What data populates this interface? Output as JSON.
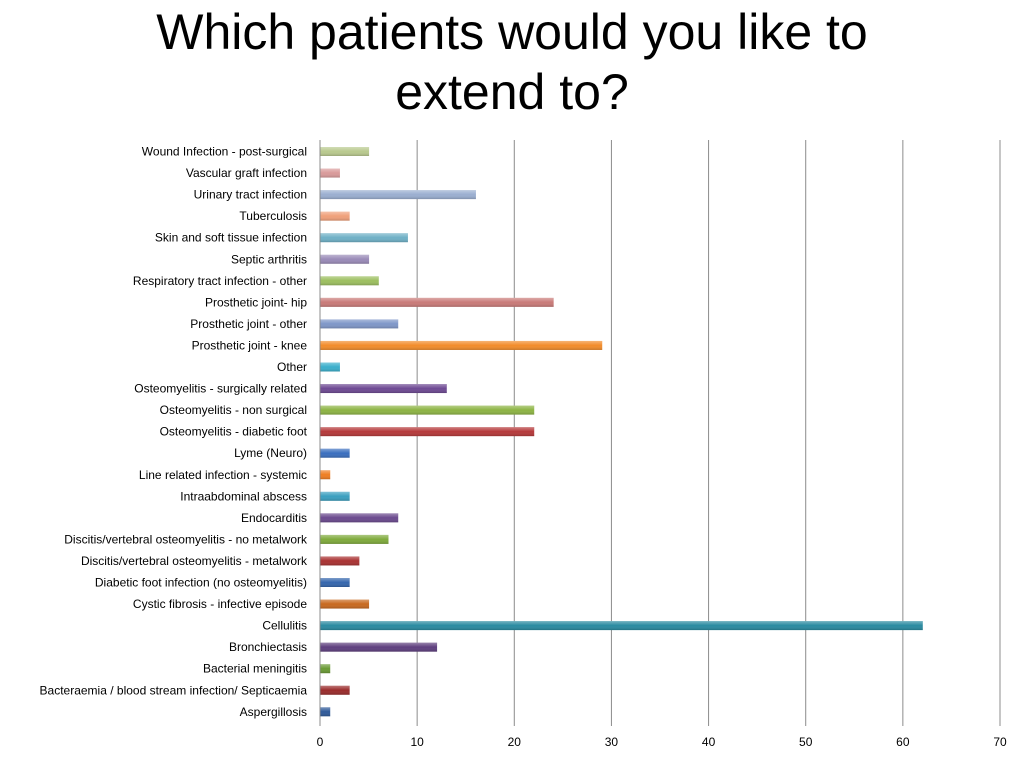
{
  "title_lines": [
    "Which patients would you like to",
    "extend to?"
  ],
  "chart_data": {
    "type": "bar",
    "orientation": "horizontal",
    "title": "Which patients would you like to extend to?",
    "xlabel": "",
    "ylabel": "",
    "xlim": [
      0,
      70
    ],
    "xticks": [
      0,
      10,
      20,
      30,
      40,
      50,
      60,
      70
    ],
    "grid": true,
    "legend": "none",
    "categories": [
      "Wound Infection - post-surgical",
      "Vascular graft infection",
      "Urinary tract infection",
      "Tuberculosis",
      "Skin and soft tissue infection",
      "Septic arthritis",
      "Respiratory tract infection - other",
      "Prosthetic joint- hip",
      "Prosthetic joint - other",
      "Prosthetic joint - knee",
      "Other",
      "Osteomyelitis - surgically related",
      "Osteomyelitis - non surgical",
      "Osteomyelitis - diabetic foot",
      "Lyme (Neuro)",
      "Line related infection - systemic",
      "Intraabdominal abscess",
      "Endocarditis",
      "Discitis/vertebral osteomyelitis - no metalwork",
      "Discitis/vertebral osteomyelitis - metalwork",
      "Diabetic foot infection (no osteomyelitis)",
      "Cystic fibrosis - infective episode",
      "Cellulitis",
      "Bronchiectasis",
      "Bacterial meningitis",
      "Bacteraemia / blood stream infection/ Septicaemia",
      "Aspergillosis"
    ],
    "values": [
      5,
      2,
      16,
      3,
      9,
      5,
      6,
      24,
      8,
      29,
      2,
      13,
      22,
      22,
      3,
      1,
      3,
      8,
      7,
      4,
      3,
      5,
      62,
      12,
      1,
      3,
      1
    ],
    "colors": [
      "#b9c98e",
      "#d99a9a",
      "#9aaed0",
      "#f0a07a",
      "#6fb0c6",
      "#9a8bb8",
      "#9cbf5f",
      "#c97a78",
      "#7f97c8",
      "#f28c2a",
      "#3aaecb",
      "#6e4a93",
      "#8db444",
      "#b5393a",
      "#3a6fbf",
      "#ef7d22",
      "#3a9fbf",
      "#6b4a8e",
      "#7faa3c",
      "#a93232",
      "#3566ad",
      "#c8691f",
      "#2a8aa0",
      "#5e3f7e",
      "#6a9a35",
      "#9a2c2c",
      "#2f5a99"
    ]
  }
}
